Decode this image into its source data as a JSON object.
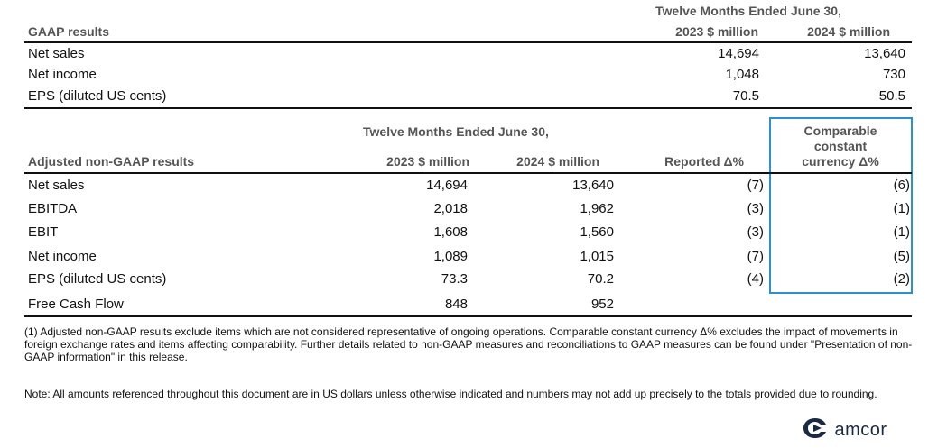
{
  "gaap": {
    "period_header": "Twelve Months Ended June 30,",
    "section_label": "GAAP results",
    "col_2023": "2023 $ million",
    "col_2024": "2024 $ million",
    "rows": [
      {
        "label": "Net sales",
        "v2023": "14,694",
        "v2024": "13,640"
      },
      {
        "label": "Net income",
        "v2023": "1,048",
        "v2024": "730"
      },
      {
        "label": "EPS (diluted US cents)",
        "v2023": "70.5",
        "v2024": "50.5"
      }
    ]
  },
  "adjusted": {
    "period_header": "Twelve Months Ended June 30,",
    "section_label": "Adjusted non-GAAP results",
    "col_2023": "2023 $ million",
    "col_2024": "2024 $ million",
    "col_reported": "Reported Δ%",
    "col_ccy_line1": "Comparable",
    "col_ccy_line2": "constant",
    "col_ccy_line3": "currency Δ%",
    "rows": [
      {
        "label": "Net sales",
        "v2023": "14,694",
        "v2024": "13,640",
        "reported": "(7)",
        "ccy": "(6)"
      },
      {
        "label": "EBITDA",
        "v2023": "2,018",
        "v2024": "1,962",
        "reported": "(3)",
        "ccy": "(1)"
      },
      {
        "label": "EBIT",
        "v2023": "1,608",
        "v2024": "1,560",
        "reported": "(3)",
        "ccy": "(1)"
      },
      {
        "label": "Net income",
        "v2023": "1,089",
        "v2024": "1,015",
        "reported": "(7)",
        "ccy": "(5)"
      },
      {
        "label": "EPS (diluted US cents)",
        "v2023": "73.3",
        "v2024": "70.2",
        "reported": "(4)",
        "ccy": "(2)"
      },
      {
        "label": "Free Cash Flow",
        "v2023": "848",
        "v2024": "952",
        "reported": "",
        "ccy": ""
      }
    ]
  },
  "footnote_1": "(1) Adjusted non-GAAP results exclude items which are not considered representative of ongoing operations. Comparable constant currency Δ% excludes the impact of movements in foreign exchange rates and items affecting comparability. Further details related to non-GAAP measures and reconciliations to GAAP measures can be found under \"Presentation of non-GAAP information\" in this release.",
  "note": "Note: All amounts referenced throughout this document are in US dollars unless otherwise indicated and numbers may not add up precisely to the totals provided due to rounding.",
  "logo": {
    "text": "amcor",
    "icon": "amcor-swirl-icon",
    "color": "#1a2a44"
  },
  "colors": {
    "highlight_box": "#2b8fd6"
  }
}
